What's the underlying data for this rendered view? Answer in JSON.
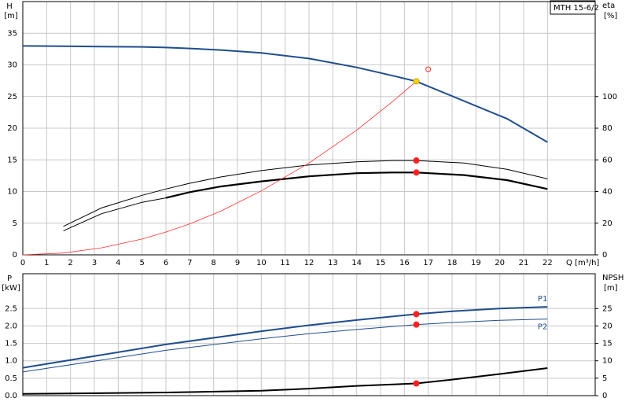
{
  "chart_data": [
    {
      "type": "line",
      "title": "MTH 15-6/2",
      "ylabel": "H",
      "yunit": "[m]",
      "y2label": "eta",
      "y2unit": "[%]",
      "xlabel": "Q [m³/h]",
      "xlim": [
        0,
        24
      ],
      "xticks": [
        0,
        1,
        2,
        3,
        4,
        5,
        6,
        7,
        8,
        9,
        10,
        11,
        12,
        13,
        14,
        15,
        16,
        17,
        18,
        19,
        20,
        21,
        22
      ],
      "show_xtick_labels": true,
      "ylim": [
        0,
        40
      ],
      "yticks": [
        0,
        5,
        10,
        15,
        20,
        25,
        30,
        35
      ],
      "y2lim": [
        0,
        160
      ],
      "y2ticks": [
        0,
        20,
        40,
        60,
        80,
        100
      ],
      "grid": true,
      "x": [
        0,
        1.7,
        3.3,
        5,
        6,
        7,
        8.3,
        10,
        12,
        14,
        15.5,
        16.5,
        18.5,
        20.3,
        22
      ],
      "series": [
        {
          "color": "#1f4e8c",
          "width": 2,
          "axis": "y",
          "values": [
            33,
            32.95,
            32.9,
            32.85,
            32.75,
            32.6,
            32.35,
            31.9,
            31.0,
            29.6,
            28.3,
            27.4,
            24.3,
            21.5,
            17.8
          ]
        },
        {
          "color": "#000000",
          "width": 1,
          "axis": "y2",
          "values": [
            null,
            18,
            29.6,
            37.6,
            41.6,
            45.2,
            49.2,
            53.2,
            56.8,
            58.8,
            59.6,
            59.6,
            58,
            54,
            48
          ]
        },
        {
          "color": "#000000",
          "width": 1,
          "axis": "y2",
          "values": [
            null,
            15.2,
            26,
            33.2,
            36,
            null,
            null,
            null,
            null,
            null,
            null,
            null,
            null,
            null,
            null
          ]
        },
        {
          "color": "#000000",
          "width": 2.2,
          "axis": "y2",
          "values": [
            null,
            null,
            null,
            null,
            36,
            39.6,
            43.2,
            46.4,
            49.6,
            51.6,
            52,
            52,
            50.4,
            47.2,
            41.6
          ]
        },
        {
          "color": "#ff3030",
          "width": 0.8,
          "axis": "y",
          "values": [
            0,
            0.29,
            1.1,
            2.5,
            3.6,
            4.9,
            6.9,
            10.1,
            14.5,
            19.7,
            24.2,
            27.4,
            null,
            null,
            null
          ]
        }
      ],
      "markers": [
        {
          "x": 16.5,
          "y": 27.4,
          "axis": "y",
          "color": "#ffd700",
          "fill": true
        },
        {
          "x": 17,
          "y": 29.3,
          "axis": "y",
          "color": "#ff3030",
          "fill": false
        },
        {
          "x": 16.5,
          "y": 59.6,
          "axis": "y2",
          "color": "#ff2020",
          "fill": true
        },
        {
          "x": 16.5,
          "y": 52,
          "axis": "y2",
          "color": "#ff2020",
          "fill": true
        }
      ]
    },
    {
      "type": "line",
      "ylabel": "P",
      "yunit": "[kW]",
      "y2label": "NPSH",
      "y2unit": "[m]",
      "xlim": [
        0,
        24
      ],
      "xticks": [
        0,
        1,
        2,
        3,
        4,
        5,
        6,
        7,
        8,
        9,
        10,
        11,
        12,
        13,
        14,
        15,
        16,
        17,
        18,
        19,
        20,
        21,
        22
      ],
      "show_xtick_labels": false,
      "ylim": [
        0,
        3.5
      ],
      "yticks": [
        {
          "value": 0,
          "label": "0.0"
        },
        0.5,
        {
          "value": 1,
          "label": "1.0"
        },
        1.5,
        {
          "value": 2,
          "label": "2.0"
        },
        2.5
      ],
      "y2lim": [
        0,
        35
      ],
      "y2ticks": [
        0,
        5,
        10,
        15,
        20,
        25
      ],
      "grid": true,
      "x": [
        0,
        6,
        10,
        12,
        14,
        16.5,
        18,
        20,
        22
      ],
      "series": [
        {
          "name": "P1",
          "color": "#1f4e8c",
          "width": 2,
          "axis": "y",
          "values": [
            0.8,
            1.47,
            1.85,
            2.02,
            2.17,
            2.34,
            2.42,
            2.5,
            2.55
          ]
        },
        {
          "name": "P2",
          "color": "#1f4e8c",
          "width": 1,
          "axis": "y",
          "values": [
            0.68,
            1.3,
            1.63,
            1.78,
            1.9,
            2.04,
            2.1,
            2.16,
            2.2
          ]
        },
        {
          "color": "#000000",
          "width": 2,
          "axis": "y2",
          "values": [
            0.5,
            0.9,
            1.4,
            2.0,
            2.8,
            3.5,
            4.6,
            6.2,
            7.9
          ]
        }
      ],
      "markers": [
        {
          "x": 16.5,
          "y": 2.34,
          "axis": "y",
          "color": "#ff2020",
          "fill": true
        },
        {
          "x": 16.5,
          "y": 2.04,
          "axis": "y",
          "color": "#ff2020",
          "fill": true
        },
        {
          "x": 16.5,
          "y": 3.5,
          "axis": "y2",
          "color": "#ff2020",
          "fill": true
        }
      ]
    }
  ]
}
